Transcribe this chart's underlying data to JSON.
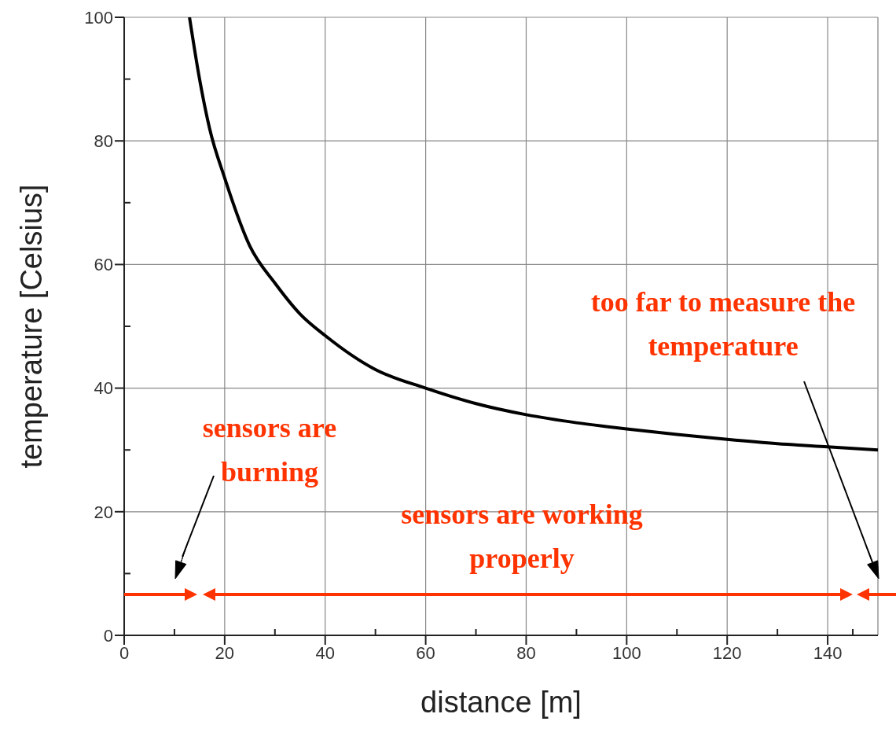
{
  "chart_data": {
    "type": "line",
    "xlabel": "distance [m]",
    "ylabel": "temperature [Celsius]",
    "xlim": [
      0,
      150
    ],
    "ylim": [
      0,
      100
    ],
    "xticks": [
      0,
      20,
      40,
      60,
      80,
      100,
      120,
      140
    ],
    "yticks": [
      0,
      20,
      40,
      60,
      80,
      100
    ],
    "grid": true,
    "series": [
      {
        "color": "#000000",
        "x": [
          13,
          15,
          17,
          20,
          25,
          30,
          35,
          40,
          50,
          60,
          70,
          80,
          90,
          100,
          110,
          120,
          130,
          140,
          150
        ],
        "values": [
          100,
          90,
          82,
          74,
          63,
          57,
          52,
          48.5,
          43,
          40,
          37.5,
          35.7,
          34.4,
          33.4,
          32.5,
          31.7,
          31,
          30.5,
          30
        ]
      }
    ],
    "annotations": [
      "sensors are burning",
      "sensors are working properly",
      "too far to measure the temperature"
    ]
  }
}
